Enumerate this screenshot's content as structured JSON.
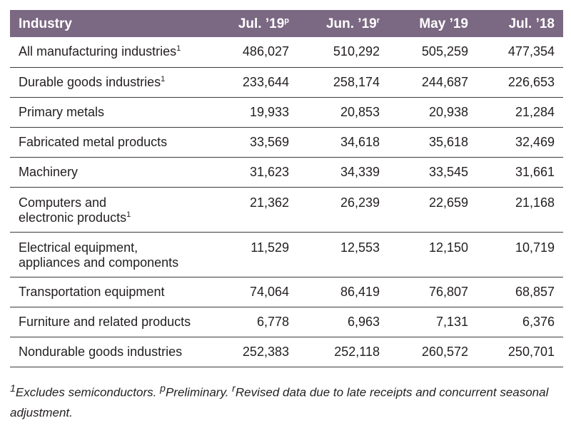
{
  "columns": {
    "industry": "Industry",
    "c1": "Jul. ’19",
    "c1_sup": "p",
    "c2": "Jun. ’19",
    "c2_sup": "r",
    "c3": "May ’19",
    "c4": "Jul. ’18"
  },
  "rows": [
    {
      "label": [
        "All manufacturing industries"
      ],
      "sup": "1",
      "values": [
        "486,027",
        "510,292",
        "505,259",
        "477,354"
      ]
    },
    {
      "label": [
        "Durable goods industries"
      ],
      "sup": "1",
      "values": [
        "233,644",
        "258,174",
        "244,687",
        "226,653"
      ]
    },
    {
      "label": [
        "Primary metals"
      ],
      "sup": "",
      "values": [
        "19,933",
        "20,853",
        "20,938",
        "21,284"
      ]
    },
    {
      "label": [
        "Fabricated metal products"
      ],
      "sup": "",
      "values": [
        "33,569",
        "34,618",
        "35,618",
        "32,469"
      ]
    },
    {
      "label": [
        "Machinery"
      ],
      "sup": "",
      "values": [
        "31,623",
        "34,339",
        "33,545",
        "31,661"
      ]
    },
    {
      "label": [
        "Computers and",
        "electronic products"
      ],
      "sup": "1",
      "values": [
        "21,362",
        "26,239",
        "22,659",
        "21,168"
      ]
    },
    {
      "label": [
        "Electrical equipment,",
        "appliances and components"
      ],
      "sup": "",
      "values": [
        "11,529",
        "12,553",
        "12,150",
        "10,719"
      ]
    },
    {
      "label": [
        "Transportation equipment"
      ],
      "sup": "",
      "values": [
        "74,064",
        "86,419",
        "76,807",
        "68,857"
      ]
    },
    {
      "label": [
        "Furniture and related products"
      ],
      "sup": "",
      "values": [
        "6,778",
        "6,963",
        "7,131",
        "6,376"
      ]
    },
    {
      "label": [
        "Nondurable goods industries"
      ],
      "sup": "",
      "values": [
        "252,383",
        "252,118",
        "260,572",
        "250,701"
      ]
    }
  ],
  "footnote": {
    "s1_sup": "1",
    "s1": "Excludes semiconductors. ",
    "s2_sup": "p",
    "s2": "Preliminary. ",
    "s3_sup": "r",
    "s3": "Revised data due to late receipts and concurrent seasonal adjustment."
  },
  "colors": {
    "header_bg": "#7b6882",
    "header_text": "#ffffff",
    "text": "#231f20",
    "rule": "#3a3a3a"
  }
}
